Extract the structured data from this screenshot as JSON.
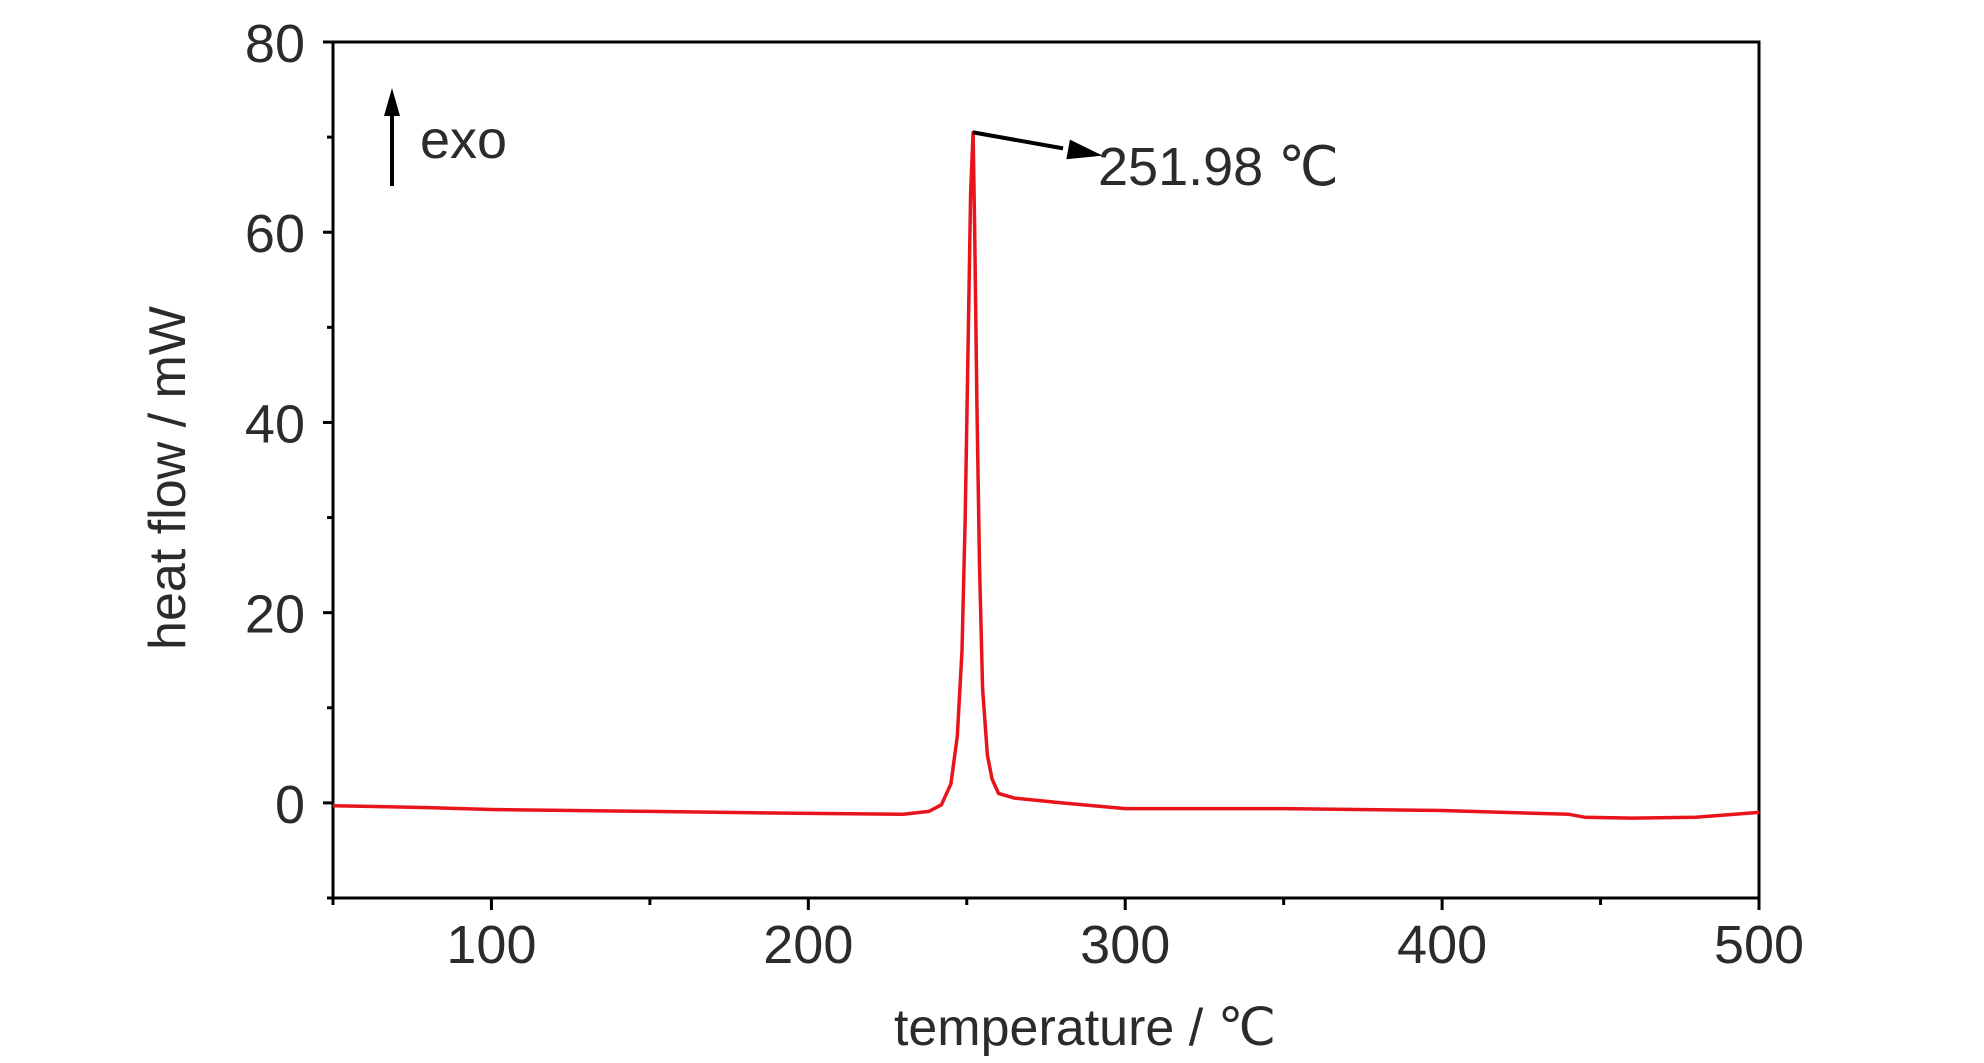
{
  "chart_data": {
    "type": "line",
    "xlabel": "temperature / ℃",
    "ylabel": "heat flow / mW",
    "xlim": [
      50,
      500
    ],
    "ylim": [
      -10,
      80
    ],
    "x_ticks": [
      100,
      200,
      300,
      400,
      500
    ],
    "x_tick_labels": [
      "100",
      "200",
      "300",
      "400",
      "500"
    ],
    "y_ticks": [
      0,
      20,
      40,
      60,
      80
    ],
    "y_tick_labels": [
      "0",
      "20",
      "40",
      "60",
      "80"
    ],
    "grid": false,
    "series_color": "#e8141b",
    "series": [
      {
        "x": [
          50,
          80,
          100,
          150,
          200,
          230,
          238,
          242,
          245,
          247,
          248.5,
          249.5,
          250.5,
          251.2,
          251.98,
          252.5,
          253.2,
          254,
          255,
          256.5,
          258,
          260,
          265,
          280,
          300,
          350,
          400,
          440,
          445,
          460,
          480,
          500
        ],
        "y": [
          -0.3,
          -0.5,
          -0.7,
          -0.9,
          -1.1,
          -1.2,
          -0.9,
          -0.2,
          2.0,
          7.0,
          16.0,
          30.0,
          50.0,
          64.0,
          70.5,
          60.0,
          42.0,
          25.0,
          12.0,
          5.0,
          2.5,
          1.0,
          0.5,
          0.0,
          -0.6,
          -0.6,
          -0.8,
          -1.2,
          -1.5,
          -1.6,
          -1.5,
          -1.0
        ]
      }
    ],
    "peak": {
      "x": 251.98,
      "y": 70.5,
      "label": "251.98 ℃"
    },
    "annotation_exo": "exo"
  }
}
